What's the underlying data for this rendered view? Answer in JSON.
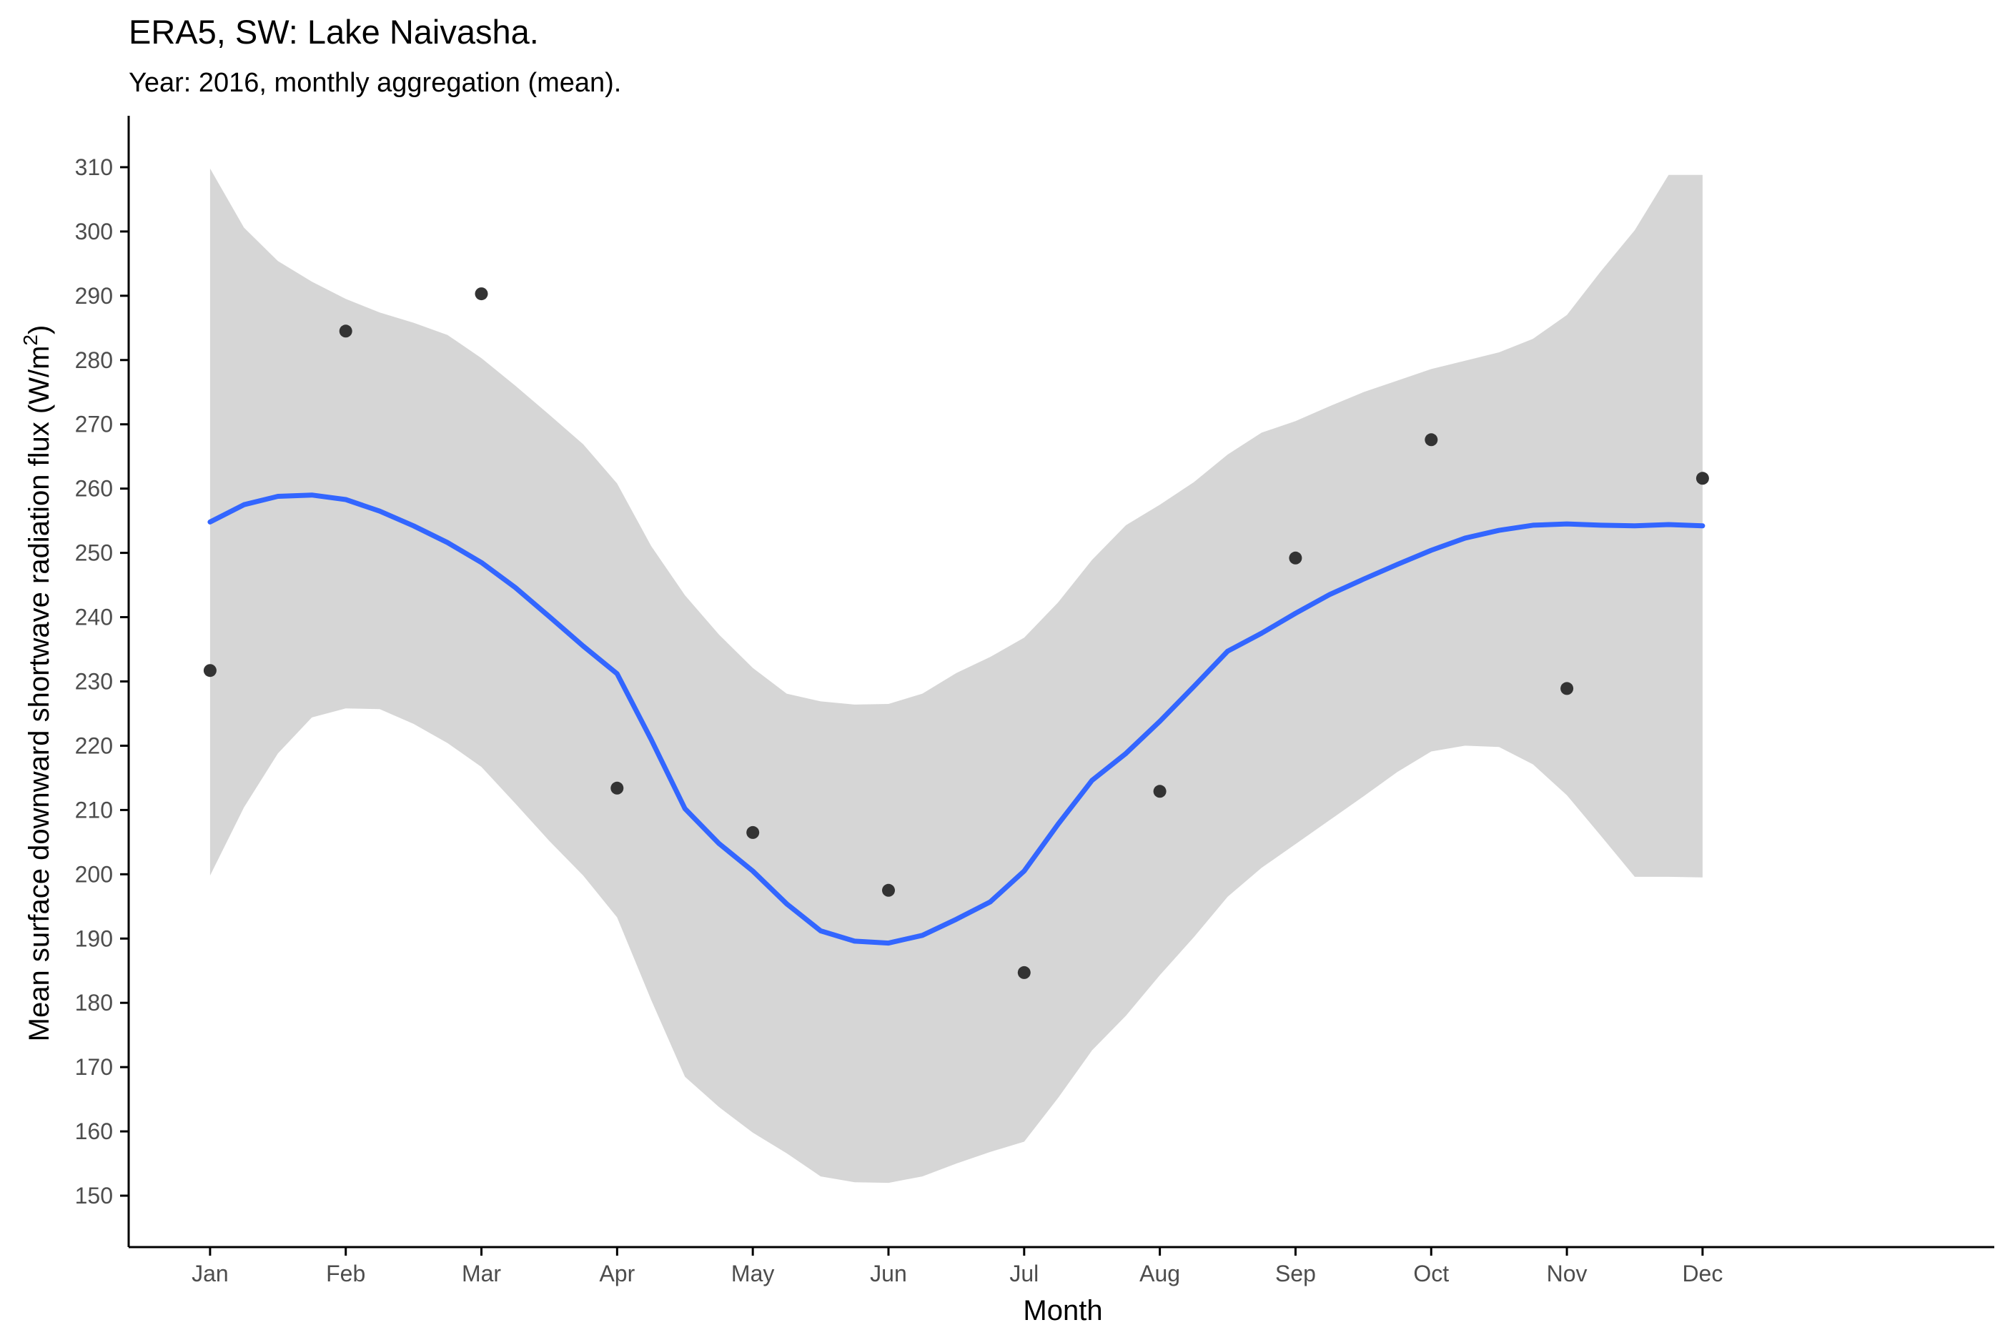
{
  "chart_data": {
    "type": "scatter",
    "title": "ERA5, SW: Lake Naivasha.",
    "subtitle": "Year: 2016, monthly aggregation (mean).",
    "xlabel": "Month",
    "ylabel_main": "Mean surface downward shortwave radiation flux (W/m",
    "ylabel_sup": "2",
    "ylabel_end": ")",
    "categories": [
      "Jan",
      "Feb",
      "Mar",
      "Apr",
      "May",
      "Jun",
      "Jul",
      "Aug",
      "Sep",
      "Oct",
      "Nov",
      "Dec"
    ],
    "points": {
      "x": [
        1,
        2,
        3,
        4,
        5,
        6,
        7,
        8,
        9,
        10,
        11,
        12
      ],
      "y": [
        231.7,
        284.5,
        290.3,
        213.4,
        206.5,
        197.5,
        184.7,
        212.9,
        249.2,
        267.6,
        228.9,
        261.6
      ]
    },
    "smooth": {
      "x": [
        1,
        1.25,
        1.5,
        1.75,
        2,
        2.25,
        2.5,
        2.75,
        3,
        3.25,
        3.5,
        3.75,
        4,
        4.25,
        4.5,
        4.75,
        5,
        5.25,
        5.5,
        5.75,
        6,
        6.25,
        6.5,
        6.75,
        7,
        7.25,
        7.5,
        7.75,
        8,
        8.25,
        8.5,
        8.75,
        9,
        9.25,
        9.5,
        9.75,
        10,
        10.25,
        10.5,
        10.75,
        11,
        11.25,
        11.5,
        11.75,
        12
      ],
      "y": [
        254.8,
        257.5,
        258.8,
        259.0,
        258.3,
        256.5,
        254.2,
        251.6,
        248.5,
        244.6,
        240.1,
        235.5,
        231.2,
        221.0,
        210.2,
        204.8,
        200.5,
        195.4,
        191.2,
        189.6,
        189.3,
        190.5,
        193.0,
        195.7,
        200.5,
        207.8,
        214.6,
        218.8,
        223.8,
        229.2,
        234.7,
        237.5,
        240.6,
        243.5,
        245.9,
        248.2,
        250.4,
        252.3,
        253.5,
        254.3,
        254.5,
        254.3,
        254.2,
        254.4,
        254.2
      ],
      "lower": [
        199.8,
        210.4,
        218.8,
        224.4,
        225.8,
        225.7,
        223.4,
        220.4,
        216.7,
        211.0,
        205.2,
        199.8,
        193.3,
        180.5,
        168.5,
        163.8,
        159.8,
        156.6,
        153.0,
        152.1,
        152.0,
        153.0,
        155.0,
        156.8,
        158.4,
        165.2,
        172.6,
        178.0,
        184.3,
        190.2,
        196.5,
        201.0,
        204.7,
        208.4,
        212.1,
        215.9,
        219.1,
        220.0,
        219.8,
        217.1,
        212.3,
        206.0,
        199.6,
        199.6,
        199.5
      ],
      "upper": [
        309.8,
        300.6,
        295.4,
        292.2,
        289.5,
        287.4,
        285.8,
        283.9,
        280.3,
        276.0,
        271.5,
        266.9,
        260.8,
        251.1,
        243.4,
        237.3,
        232.1,
        228.1,
        226.9,
        226.4,
        226.5,
        228.1,
        231.3,
        233.8,
        236.8,
        242.3,
        248.9,
        254.3,
        257.5,
        261.0,
        265.3,
        268.7,
        270.5,
        272.8,
        275.0,
        276.8,
        278.6,
        279.9,
        281.2,
        283.3,
        287.0,
        293.8,
        300.2,
        308.8,
        308.8
      ]
    },
    "ylim": [
      142,
      318
    ],
    "xlim": [
      0.4,
      14.15
    ],
    "yticks": [
      150,
      160,
      170,
      180,
      190,
      200,
      210,
      220,
      230,
      240,
      250,
      260,
      270,
      280,
      290,
      300,
      310
    ],
    "grid": false,
    "legend": "none",
    "colors": {
      "points": "#333333",
      "smooth_line": "#3366ff",
      "ribbon": "#d6d6d6",
      "axis": "#000000",
      "tick_label": "#4d4d4d"
    }
  }
}
